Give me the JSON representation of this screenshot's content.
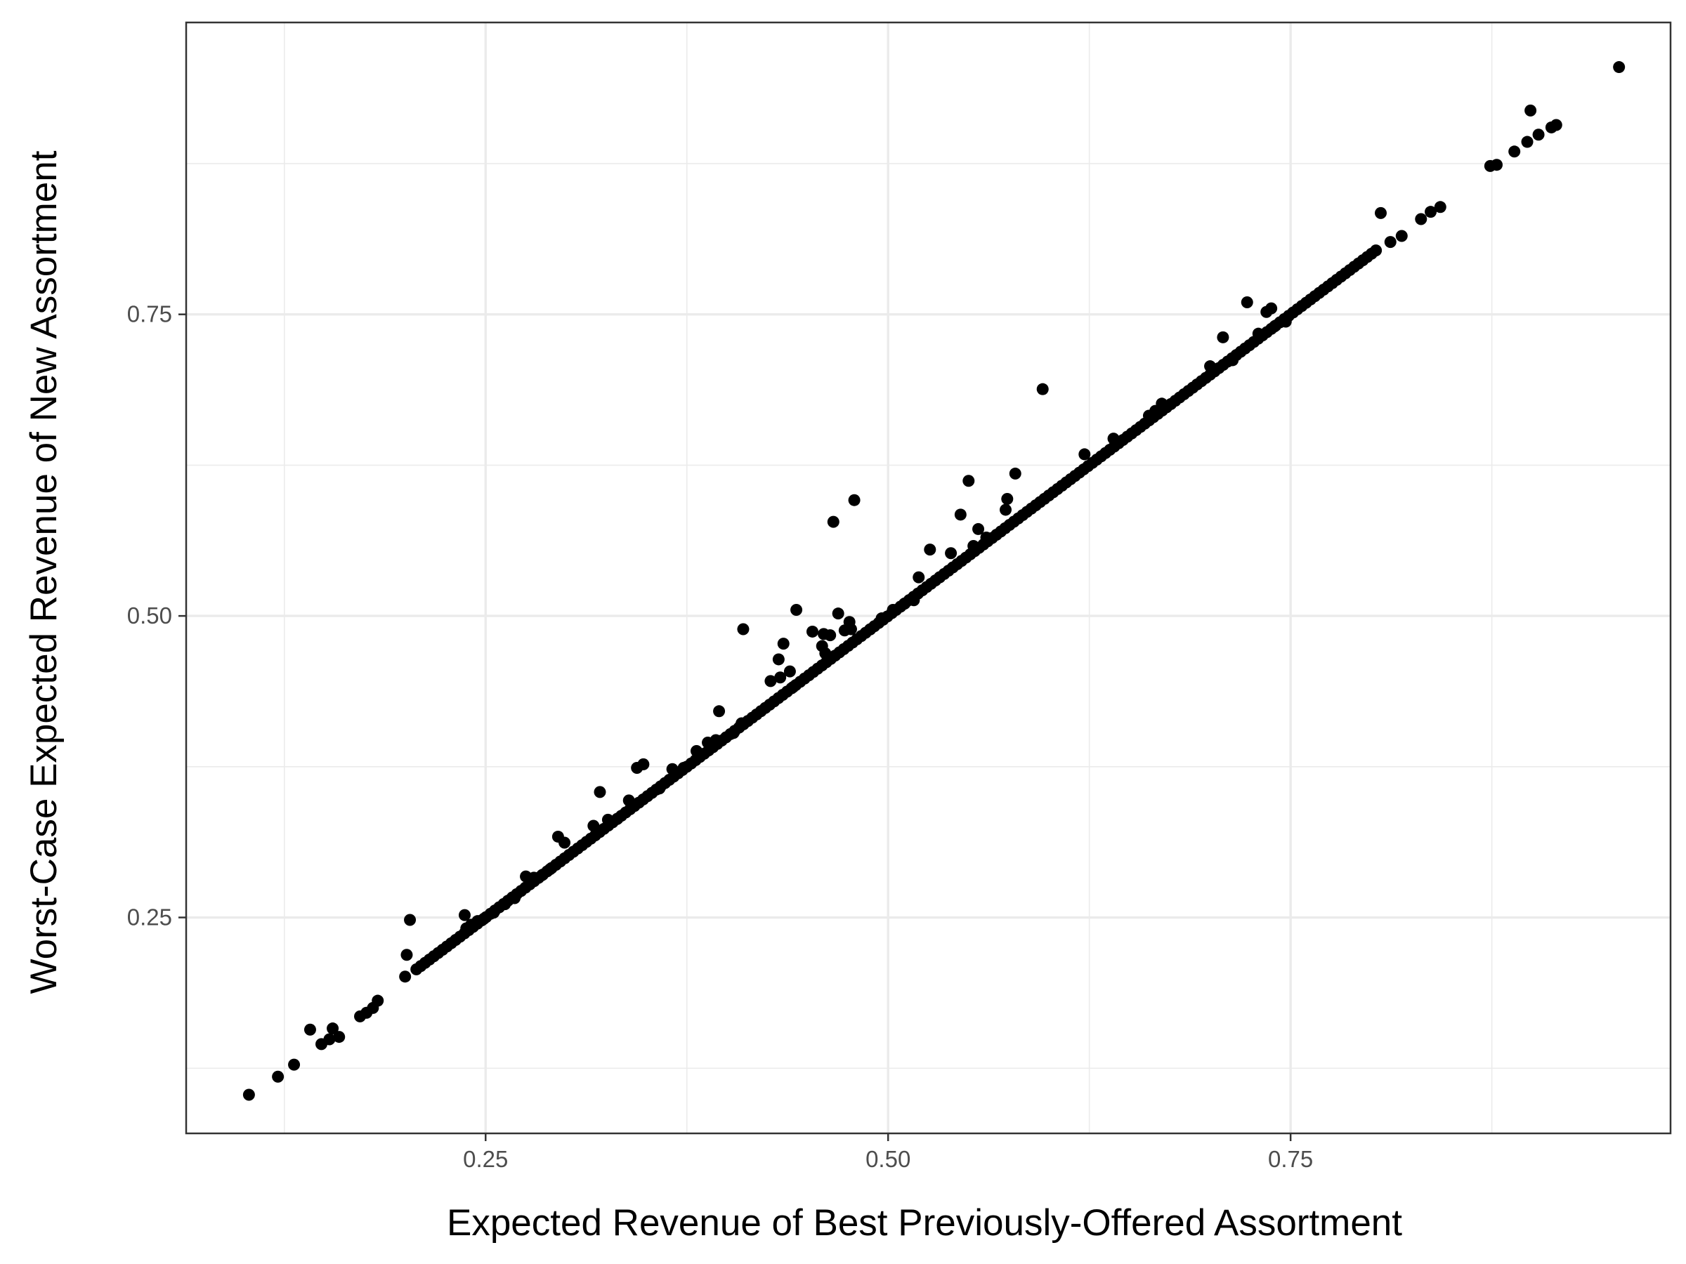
{
  "chart_data": {
    "type": "scatter",
    "xlabel": "Expected Revenue of Best Previously-Offered Assortment",
    "ylabel": "Worst-Case Expected Revenue of New Assortment",
    "xlim": [
      0.064,
      0.986
    ],
    "ylim": [
      0.071,
      0.992
    ],
    "x_ticks": [
      0.25,
      0.5,
      0.75
    ],
    "x_tick_labels": [
      "0.25",
      "0.50",
      "0.75"
    ],
    "y_ticks": [
      0.25,
      0.5,
      0.75
    ],
    "y_tick_labels": [
      "0.25",
      "0.50",
      "0.75"
    ],
    "x_minor": [
      0.125,
      0.375,
      0.625,
      0.875
    ],
    "y_minor": [
      0.125,
      0.375,
      0.625,
      0.875
    ],
    "grid": true,
    "legend": "none",
    "colors": {
      "points": "#000000",
      "panel_border": "#333333",
      "grid": "#ebebeb"
    },
    "diagonal_band": {
      "from": 0.207,
      "to": 0.803,
      "count": 220
    },
    "points": [
      [
        0.103,
        0.103
      ],
      [
        0.121,
        0.118
      ],
      [
        0.131,
        0.128
      ],
      [
        0.141,
        0.157
      ],
      [
        0.148,
        0.145
      ],
      [
        0.153,
        0.149
      ],
      [
        0.155,
        0.158
      ],
      [
        0.159,
        0.151
      ],
      [
        0.172,
        0.168
      ],
      [
        0.176,
        0.171
      ],
      [
        0.18,
        0.175
      ],
      [
        0.183,
        0.181
      ],
      [
        0.2,
        0.201
      ],
      [
        0.201,
        0.219
      ],
      [
        0.203,
        0.248
      ],
      [
        0.237,
        0.252
      ],
      [
        0.238,
        0.241
      ],
      [
        0.241,
        0.244
      ],
      [
        0.245,
        0.247
      ],
      [
        0.249,
        0.249
      ],
      [
        0.255,
        0.254
      ],
      [
        0.262,
        0.261
      ],
      [
        0.268,
        0.266
      ],
      [
        0.275,
        0.284
      ],
      [
        0.28,
        0.283
      ],
      [
        0.285,
        0.285
      ],
      [
        0.29,
        0.29
      ],
      [
        0.295,
        0.317
      ],
      [
        0.299,
        0.312
      ],
      [
        0.317,
        0.326
      ],
      [
        0.321,
        0.354
      ],
      [
        0.326,
        0.331
      ],
      [
        0.332,
        0.332
      ],
      [
        0.339,
        0.347
      ],
      [
        0.344,
        0.374
      ],
      [
        0.348,
        0.377
      ],
      [
        0.358,
        0.357
      ],
      [
        0.366,
        0.373
      ],
      [
        0.373,
        0.374
      ],
      [
        0.381,
        0.388
      ],
      [
        0.388,
        0.395
      ],
      [
        0.393,
        0.397
      ],
      [
        0.395,
        0.421
      ],
      [
        0.404,
        0.403
      ],
      [
        0.409,
        0.411
      ],
      [
        0.41,
        0.489
      ],
      [
        0.427,
        0.446
      ],
      [
        0.432,
        0.464
      ],
      [
        0.433,
        0.449
      ],
      [
        0.435,
        0.477
      ],
      [
        0.439,
        0.454
      ],
      [
        0.441,
        0.441
      ],
      [
        0.443,
        0.505
      ],
      [
        0.453,
        0.487
      ],
      [
        0.459,
        0.475
      ],
      [
        0.46,
        0.485
      ],
      [
        0.461,
        0.469
      ],
      [
        0.464,
        0.484
      ],
      [
        0.466,
        0.578
      ],
      [
        0.469,
        0.502
      ],
      [
        0.473,
        0.488
      ],
      [
        0.476,
        0.495
      ],
      [
        0.477,
        0.489
      ],
      [
        0.479,
        0.596
      ],
      [
        0.489,
        0.489
      ],
      [
        0.496,
        0.498
      ],
      [
        0.503,
        0.505
      ],
      [
        0.51,
        0.51
      ],
      [
        0.516,
        0.513
      ],
      [
        0.519,
        0.532
      ],
      [
        0.526,
        0.555
      ],
      [
        0.532,
        0.532
      ],
      [
        0.539,
        0.552
      ],
      [
        0.545,
        0.584
      ],
      [
        0.55,
        0.612
      ],
      [
        0.553,
        0.558
      ],
      [
        0.556,
        0.572
      ],
      [
        0.561,
        0.565
      ],
      [
        0.573,
        0.588
      ],
      [
        0.574,
        0.597
      ],
      [
        0.579,
        0.618
      ],
      [
        0.596,
        0.688
      ],
      [
        0.622,
        0.634
      ],
      [
        0.64,
        0.647
      ],
      [
        0.662,
        0.666
      ],
      [
        0.666,
        0.67
      ],
      [
        0.67,
        0.676
      ],
      [
        0.7,
        0.707
      ],
      [
        0.708,
        0.731
      ],
      [
        0.714,
        0.712
      ],
      [
        0.723,
        0.76
      ],
      [
        0.73,
        0.734
      ],
      [
        0.735,
        0.752
      ],
      [
        0.738,
        0.755
      ],
      [
        0.74,
        0.74
      ],
      [
        0.747,
        0.744
      ],
      [
        0.806,
        0.834
      ],
      [
        0.812,
        0.81
      ],
      [
        0.819,
        0.815
      ],
      [
        0.831,
        0.829
      ],
      [
        0.837,
        0.835
      ],
      [
        0.843,
        0.839
      ],
      [
        0.874,
        0.873
      ],
      [
        0.878,
        0.874
      ],
      [
        0.889,
        0.885
      ],
      [
        0.897,
        0.893
      ],
      [
        0.899,
        0.919
      ],
      [
        0.904,
        0.899
      ],
      [
        0.912,
        0.905
      ],
      [
        0.915,
        0.907
      ],
      [
        0.954,
        0.955
      ]
    ]
  }
}
